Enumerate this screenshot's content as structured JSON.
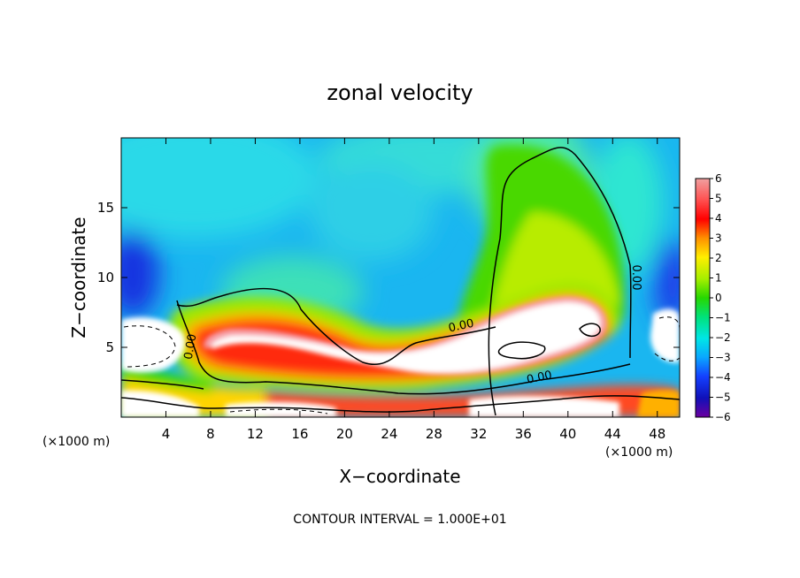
{
  "chart_data": {
    "type": "heatmap",
    "title": "zonal velocity",
    "xlabel": "X−coordinate",
    "ylabel": "Z−coordinate",
    "x_unit_left": "(×1000 m)",
    "x_unit_right": "(×1000 m)",
    "xlim": [
      0,
      50
    ],
    "ylim": [
      0,
      20
    ],
    "x_ticks": [
      4,
      8,
      12,
      16,
      20,
      24,
      28,
      32,
      36,
      40,
      44,
      48
    ],
    "y_ticks": [
      5,
      10,
      15
    ],
    "colorbar": {
      "min": -6,
      "max": 6,
      "labels": [
        "6",
        "5",
        "4",
        "3",
        "2",
        "1",
        "0",
        "−1",
        "−2",
        "−3",
        "−4",
        "−5",
        "−6"
      ],
      "values": [
        6,
        5,
        4,
        3,
        2,
        1,
        0,
        -1,
        -2,
        -3,
        -4,
        -5,
        -6
      ]
    },
    "contour_labels": [
      {
        "text": "0.00",
        "x": 6.5,
        "y": 5.0
      },
      {
        "text": "0.00",
        "x": 30.5,
        "y": 6.3
      },
      {
        "text": "0.00",
        "x": 37.5,
        "y": 2.6
      },
      {
        "text": "0.00",
        "x": 45.8,
        "y": 10.0
      }
    ],
    "contour_interval_text": "CONTOUR INTERVAL = 1.000E+01"
  }
}
